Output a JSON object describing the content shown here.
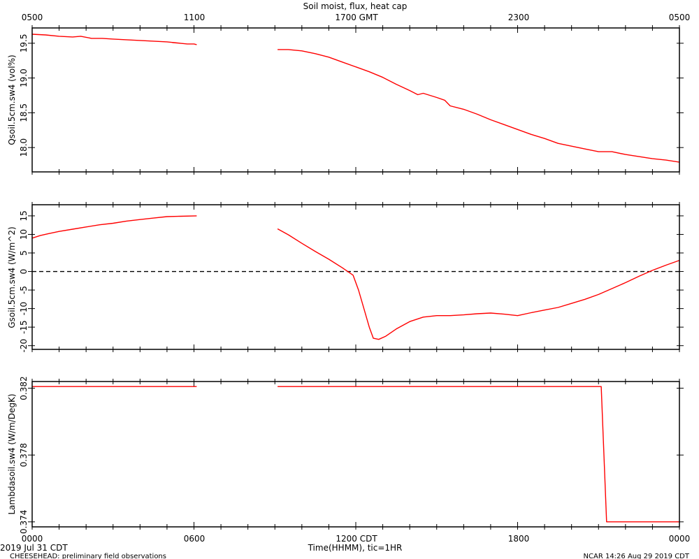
{
  "title": "Soil moist, flux, heat cap",
  "top_axis": {
    "labels": [
      "0500",
      "1100",
      "1700 GMT",
      "2300",
      "0500"
    ]
  },
  "bottom_axis": {
    "labels": [
      "0000",
      "0600",
      "1200 CDT",
      "1800",
      "0000"
    ],
    "xlabel": "Time(HHMM), tic=1HR",
    "date_label": "2019 Jul 31 CDT"
  },
  "footer": {
    "left": "CHEESEHEAD: preliminary field observations",
    "right": "NCAR 14:26 Aug 29 2019 CDT"
  },
  "colors": {
    "series": "#ff0000",
    "axis": "#000000",
    "zero_line": "#000000"
  },
  "chart_data": [
    {
      "type": "line",
      "ylabel": "Qsoil.5cm.sw4 (vol%)",
      "xlim": [
        0,
        24
      ],
      "ylim": [
        17.65,
        19.72
      ],
      "yticks": [
        18.0,
        18.5,
        19.0,
        19.5
      ],
      "ytick_labels": [
        "18.0",
        "18.5",
        "19.0",
        "19.5"
      ],
      "series": [
        {
          "segments": [
            [
              [
                0,
                19.63
              ],
              [
                0.5,
                19.62
              ],
              [
                1,
                19.6
              ],
              [
                1.5,
                19.59
              ],
              [
                1.8,
                19.6
              ],
              [
                2.2,
                19.57
              ],
              [
                2.6,
                19.57
              ],
              [
                3,
                19.56
              ],
              [
                3.5,
                19.55
              ],
              [
                4,
                19.54
              ],
              [
                4.5,
                19.53
              ],
              [
                5,
                19.52
              ],
              [
                5.5,
                19.5
              ],
              [
                5.2,
                19.51
              ],
              [
                5.75,
                19.49
              ],
              [
                6,
                19.49
              ],
              [
                6.1,
                19.48
              ]
            ],
            [
              [
                9.1,
                19.41
              ],
              [
                9.5,
                19.41
              ],
              [
                10,
                19.39
              ],
              [
                10.5,
                19.35
              ],
              [
                11,
                19.3
              ],
              [
                11.5,
                19.23
              ],
              [
                12,
                19.16
              ],
              [
                12.5,
                19.09
              ],
              [
                13,
                19.01
              ],
              [
                13.5,
                18.91
              ],
              [
                14,
                18.82
              ],
              [
                14.3,
                18.76
              ],
              [
                14.5,
                18.78
              ],
              [
                15,
                18.72
              ],
              [
                15.3,
                18.68
              ],
              [
                15.5,
                18.6
              ],
              [
                16,
                18.55
              ],
              [
                16.5,
                18.48
              ],
              [
                17,
                18.4
              ],
              [
                17.5,
                18.33
              ],
              [
                18,
                18.26
              ],
              [
                18.5,
                18.19
              ],
              [
                19,
                18.13
              ],
              [
                19.5,
                18.06
              ],
              [
                20,
                18.02
              ],
              [
                20.5,
                17.98
              ],
              [
                21,
                17.94
              ],
              [
                21.3,
                17.94
              ],
              [
                21.5,
                17.94
              ],
              [
                22,
                17.9
              ],
              [
                22.5,
                17.87
              ],
              [
                23,
                17.84
              ],
              [
                23.5,
                17.82
              ],
              [
                24,
                17.79
              ]
            ]
          ]
        }
      ]
    },
    {
      "type": "line",
      "ylabel": "Gsoil.5cm.sw4 (W/m^2)",
      "xlim": [
        0,
        24
      ],
      "ylim": [
        -21,
        18
      ],
      "yticks": [
        -20,
        -15,
        -10,
        -5,
        0,
        5,
        10,
        15
      ],
      "ytick_labels": [
        "-20",
        "-15",
        "-10",
        "-5",
        "0",
        "5",
        "10",
        "15"
      ],
      "zero_line": true,
      "series": [
        {
          "segments": [
            [
              [
                0,
                9.0
              ],
              [
                0.3,
                9.7
              ],
              [
                0.6,
                10.2
              ],
              [
                1,
                10.8
              ],
              [
                1.5,
                11.4
              ],
              [
                2,
                12.0
              ],
              [
                2.5,
                12.6
              ],
              [
                3,
                13.0
              ],
              [
                3.5,
                13.6
              ],
              [
                4,
                14.0
              ],
              [
                4.5,
                14.4
              ],
              [
                5,
                14.8
              ],
              [
                5.5,
                14.9
              ],
              [
                6.1,
                15.0
              ]
            ],
            [
              [
                9.1,
                11.5
              ],
              [
                9.5,
                9.9
              ],
              [
                10,
                7.6
              ],
              [
                10.5,
                5.4
              ],
              [
                11,
                3.3
              ],
              [
                11.5,
                1.0
              ],
              [
                11.9,
                -1.0
              ],
              [
                12.1,
                -5.0
              ],
              [
                12.3,
                -10.0
              ],
              [
                12.5,
                -15.0
              ],
              [
                12.65,
                -18.0
              ],
              [
                12.85,
                -18.3
              ],
              [
                13.1,
                -17.5
              ],
              [
                13.5,
                -15.5
              ],
              [
                14,
                -13.5
              ],
              [
                14.5,
                -12.3
              ],
              [
                15,
                -11.9
              ],
              [
                15.5,
                -11.9
              ],
              [
                16,
                -11.7
              ],
              [
                16.5,
                -11.4
              ],
              [
                17,
                -11.2
              ],
              [
                17.5,
                -11.5
              ],
              [
                18,
                -11.9
              ],
              [
                18.5,
                -11.1
              ],
              [
                19,
                -10.4
              ],
              [
                19.5,
                -9.7
              ],
              [
                20,
                -8.6
              ],
              [
                20.5,
                -7.5
              ],
              [
                21,
                -6.2
              ],
              [
                21.5,
                -4.6
              ],
              [
                22,
                -3.0
              ],
              [
                22.5,
                -1.3
              ],
              [
                23,
                0.3
              ],
              [
                23.5,
                1.7
              ],
              [
                24,
                3.0
              ]
            ]
          ]
        }
      ]
    },
    {
      "type": "line",
      "ylabel": "Lambdasoil.sw4 (W/m/DegK)",
      "xlim": [
        0,
        24
      ],
      "ylim": [
        0.3737,
        0.3824
      ],
      "yticks": [
        0.374,
        0.378,
        0.382
      ],
      "ytick_labels": [
        "0.374",
        "0.378",
        "0.382"
      ],
      "series": [
        {
          "segments": [
            [
              [
                0,
                0.3821
              ],
              [
                6.1,
                0.3821
              ]
            ],
            [
              [
                9.1,
                0.3821
              ],
              [
                21.1,
                0.3821
              ],
              [
                21.3,
                0.374
              ],
              [
                24,
                0.374
              ]
            ]
          ]
        }
      ]
    }
  ]
}
